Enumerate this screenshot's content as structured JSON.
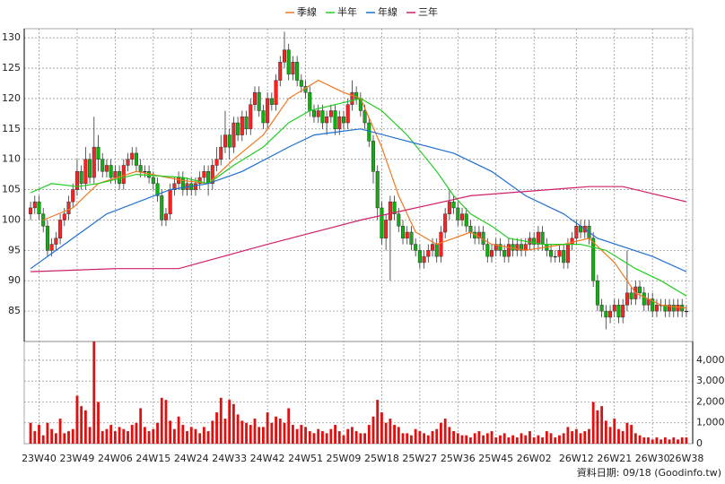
{
  "chart_data": [
    {
      "type": "candlestick",
      "categories": [
        null,
        null,
        "23W40",
        null,
        null,
        null,
        null,
        null,
        null,
        null,
        null,
        "23W49",
        null,
        null,
        null,
        null,
        null,
        null,
        null,
        null,
        "24W06",
        null,
        null,
        null,
        null,
        null,
        null,
        null,
        null,
        "24W15",
        null,
        null,
        null,
        null,
        null,
        null,
        null,
        null,
        "24W24",
        null,
        null,
        null,
        null,
        null,
        null,
        null,
        null,
        "24W33",
        null,
        null,
        null,
        null,
        null,
        null,
        null,
        null,
        "24W42",
        null,
        null,
        null,
        null,
        null,
        null,
        null,
        null,
        "24W51",
        null,
        null,
        null,
        null,
        null,
        null,
        null,
        null,
        "25W09",
        null,
        null,
        null,
        null,
        null,
        null,
        null,
        null,
        "25W18",
        null,
        null,
        null,
        null,
        null,
        null,
        null,
        null,
        "25W27",
        null,
        null,
        null,
        null,
        null,
        null,
        null,
        null,
        "25W36",
        null,
        null,
        null,
        null,
        null,
        null,
        null,
        null,
        "25W45",
        null,
        null,
        null,
        null,
        null,
        null,
        null,
        null,
        "26W02",
        null,
        null,
        null,
        null,
        null,
        null,
        null,
        null,
        null,
        "26W12",
        null,
        null,
        null,
        null,
        null,
        null,
        null,
        null,
        "26W21",
        null,
        null,
        null,
        null,
        null,
        null,
        null,
        null,
        "26W30",
        null,
        null,
        null,
        null,
        null,
        null,
        null,
        "26W38"
      ],
      "open": [
        101,
        102,
        103,
        101,
        99,
        95,
        96,
        97,
        100,
        101,
        103,
        105,
        108,
        106,
        110,
        107,
        112,
        110,
        108,
        109,
        107,
        108,
        106,
        109,
        110,
        111,
        109,
        108,
        108,
        107,
        106,
        104,
        100,
        101,
        105,
        106,
        107,
        105,
        106,
        105,
        106,
        107,
        108,
        106,
        109,
        110,
        112,
        114,
        112,
        116,
        114,
        117,
        115,
        119,
        121,
        118,
        116,
        120,
        119,
        123,
        126,
        128,
        124,
        126,
        123,
        122,
        121,
        118,
        117,
        118,
        116,
        117,
        118,
        115,
        117,
        116,
        119,
        121,
        120,
        118,
        116,
        113,
        108,
        102,
        97,
        100,
        103,
        101,
        99,
        97,
        98,
        96,
        95,
        93,
        94,
        95,
        96,
        94,
        98,
        101,
        103,
        102,
        100,
        101,
        99,
        98,
        97,
        98,
        96,
        94,
        95,
        96,
        95,
        94,
        96,
        95,
        96,
        95,
        96,
        97,
        96,
        98,
        96,
        95,
        94,
        94,
        95,
        93,
        96,
        97,
        99,
        98,
        99,
        97,
        90,
        86,
        85,
        84,
        85,
        86,
        84,
        86,
        88,
        87,
        89,
        88,
        86,
        87,
        85,
        86,
        86,
        85,
        86,
        85,
        86,
        85
      ],
      "high": [
        103,
        104,
        104,
        102,
        100,
        97,
        98,
        101,
        102,
        104,
        106,
        110,
        109,
        112,
        111,
        117,
        114,
        111,
        110,
        110,
        109,
        109,
        110,
        111,
        112,
        112,
        110,
        109,
        109,
        108,
        107,
        105,
        102,
        106,
        107,
        108,
        108,
        107,
        107,
        107,
        108,
        109,
        109,
        110,
        112,
        114,
        118,
        115,
        117,
        117,
        118,
        118,
        120,
        122,
        122,
        119,
        121,
        121,
        124,
        127,
        131,
        129,
        127,
        127,
        124,
        123,
        122,
        119,
        119,
        119,
        118,
        119,
        119,
        118,
        118,
        120,
        123,
        122,
        121,
        119,
        117,
        114,
        109,
        103,
        101,
        104,
        104,
        102,
        100,
        99,
        99,
        97,
        96,
        95,
        96,
        97,
        97,
        99,
        102,
        105,
        104,
        103,
        102,
        102,
        100,
        99,
        99,
        99,
        97,
        96,
        97,
        97,
        96,
        97,
        97,
        97,
        97,
        97,
        98,
        98,
        99,
        99,
        97,
        96,
        95,
        96,
        96,
        97,
        98,
        100,
        100,
        100,
        100,
        98,
        91,
        87,
        86,
        86,
        87,
        87,
        87,
        95,
        89,
        90,
        90,
        89,
        88,
        88,
        87,
        87,
        87,
        87,
        87,
        87,
        87,
        86
      ],
      "low": [
        100,
        101,
        100,
        98,
        94,
        94,
        95,
        96,
        99,
        100,
        102,
        104,
        105,
        105,
        106,
        106,
        108,
        107,
        107,
        106,
        106,
        105,
        105,
        108,
        109,
        108,
        107,
        107,
        106,
        105,
        103,
        99,
        99,
        100,
        104,
        105,
        104,
        104,
        104,
        104,
        105,
        106,
        104,
        105,
        108,
        109,
        111,
        110,
        111,
        113,
        113,
        114,
        114,
        118,
        117,
        115,
        115,
        118,
        118,
        122,
        125,
        123,
        123,
        122,
        121,
        120,
        117,
        116,
        116,
        115,
        114,
        116,
        114,
        114,
        115,
        115,
        118,
        119,
        117,
        115,
        112,
        106,
        100,
        96,
        95,
        90,
        100,
        98,
        96,
        96,
        95,
        94,
        92,
        92,
        93,
        94,
        93,
        93,
        97,
        100,
        101,
        99,
        99,
        98,
        97,
        96,
        96,
        95,
        93,
        93,
        94,
        94,
        93,
        93,
        94,
        94,
        94,
        94,
        95,
        95,
        95,
        95,
        94,
        93,
        93,
        93,
        92,
        92,
        95,
        96,
        97,
        97,
        96,
        89,
        85,
        84,
        82,
        83,
        84,
        83,
        83,
        85,
        86,
        86,
        87,
        85,
        85,
        84,
        84,
        85,
        84,
        84,
        84,
        84,
        84,
        84
      ],
      "close": [
        102,
        103,
        101,
        99,
        95,
        96,
        97,
        100,
        101,
        103,
        105,
        108,
        106,
        110,
        107,
        112,
        110,
        108,
        109,
        107,
        108,
        106,
        109,
        110,
        111,
        109,
        108,
        108,
        107,
        106,
        104,
        100,
        101,
        105,
        106,
        107,
        105,
        106,
        105,
        106,
        107,
        108,
        106,
        109,
        110,
        112,
        114,
        112,
        116,
        114,
        117,
        115,
        119,
        121,
        118,
        116,
        120,
        119,
        123,
        126,
        128,
        124,
        126,
        123,
        122,
        121,
        118,
        117,
        118,
        116,
        117,
        118,
        115,
        117,
        116,
        119,
        121,
        120,
        118,
        116,
        113,
        108,
        102,
        97,
        100,
        103,
        101,
        99,
        97,
        98,
        96,
        95,
        93,
        94,
        95,
        96,
        94,
        98,
        101,
        103,
        102,
        100,
        101,
        99,
        98,
        97,
        98,
        96,
        94,
        95,
        96,
        95,
        94,
        96,
        95,
        96,
        95,
        96,
        97,
        96,
        98,
        96,
        95,
        94,
        94,
        95,
        93,
        96,
        97,
        99,
        98,
        99,
        97,
        90,
        86,
        85,
        84,
        85,
        86,
        84,
        86,
        88,
        87,
        89,
        88,
        86,
        87,
        85,
        86,
        86,
        85,
        86,
        85,
        86,
        85,
        85
      ],
      "up_color": "#ff2020",
      "down_color": "#10b010",
      "series": [
        {
          "name": "季線",
          "color": "#f07820",
          "x": [
            3,
            10,
            16,
            25,
            36,
            42,
            48,
            55,
            61,
            68,
            74,
            78,
            83,
            87,
            91,
            96,
            100,
            104,
            109,
            117,
            126,
            132,
            138,
            143,
            149,
            155
          ],
          "values": [
            100,
            102,
            106,
            108,
            106.5,
            106,
            110,
            114,
            120,
            123,
            121,
            120,
            112,
            104,
            98,
            96,
            97,
            98,
            96,
            95,
            96,
            97,
            93,
            88,
            86,
            85.5
          ]
        },
        {
          "name": "半年",
          "color": "#22cc22",
          "x": [
            0,
            5,
            11,
            16,
            25,
            36,
            42,
            48,
            55,
            61,
            66,
            72,
            78,
            83,
            89,
            96,
            100,
            104,
            109,
            113,
            121,
            130,
            136,
            143,
            149,
            155
          ],
          "values": [
            104.5,
            106,
            105.5,
            106,
            107.5,
            107,
            106,
            109,
            112,
            116,
            118,
            119,
            120,
            118,
            114,
            108,
            104,
            101,
            99,
            97,
            96,
            96,
            95,
            92,
            90,
            87.5
          ]
        },
        {
          "name": "年線",
          "color": "#1f6fd0",
          "x": [
            0,
            8,
            18,
            33,
            42,
            50,
            61,
            67,
            78,
            89,
            100,
            109,
            117,
            126,
            134,
            147,
            155
          ],
          "values": [
            92,
            96,
            101,
            105,
            106,
            108,
            112,
            114,
            115,
            113,
            111,
            108,
            104,
            101,
            97,
            94,
            91.5
          ]
        },
        {
          "name": "三年",
          "color": "#d0206a",
          "x": [
            0,
            20,
            35,
            56,
            78,
            104,
            132,
            140,
            155
          ],
          "values": [
            91.5,
            92,
            92,
            96,
            100,
            104,
            105.5,
            105.5,
            103
          ]
        }
      ],
      "xlim": [
        -1.5,
        156.5
      ],
      "ylim": [
        80,
        131.5
      ],
      "yticks": [
        85,
        90,
        95,
        100,
        105,
        110,
        115,
        120,
        125,
        130
      ],
      "grid": true
    },
    {
      "type": "bar",
      "values": [
        1000,
        600,
        900,
        400,
        1000,
        700,
        500,
        1200,
        500,
        600,
        700,
        2300,
        1800,
        1600,
        800,
        4900,
        2000,
        600,
        700,
        900,
        600,
        800,
        700,
        600,
        900,
        1000,
        1700,
        800,
        600,
        700,
        1000,
        2200,
        2100,
        1100,
        700,
        1300,
        900,
        600,
        800,
        700,
        500,
        800,
        600,
        1100,
        1500,
        2200,
        1200,
        2100,
        1900,
        1400,
        1100,
        1000,
        900,
        1200,
        800,
        800,
        1500,
        1000,
        1300,
        1200,
        1000,
        1700,
        900,
        700,
        900,
        800,
        600,
        500,
        700,
        600,
        500,
        700,
        900,
        600,
        400,
        700,
        800,
        600,
        500,
        500,
        900,
        1300,
        2100,
        1500,
        1000,
        1200,
        900,
        800,
        500,
        500,
        400,
        700,
        600,
        500,
        400,
        600,
        700,
        1000,
        1200,
        800,
        600,
        500,
        400,
        400,
        300,
        500,
        600,
        400,
        500,
        600,
        300,
        400,
        500,
        300,
        400,
        300,
        500,
        400,
        600,
        300,
        400,
        300,
        600,
        500,
        300,
        400,
        500,
        800,
        600,
        700,
        500,
        600,
        700,
        2000,
        1600,
        1800,
        1100,
        800,
        1200,
        700,
        600,
        1000,
        900,
        500,
        400,
        300,
        300,
        200,
        300,
        200,
        300,
        200,
        300,
        200,
        300,
        300
      ],
      "color": "#e01010",
      "ylim": [
        0,
        4900
      ],
      "yticks": [
        0,
        {
          "value": 1000,
          "label": "1,000"
        },
        {
          "value": 2000,
          "label": "2,000"
        },
        {
          "value": 3000,
          "label": "3,000"
        },
        {
          "value": 4000,
          "label": "4,000"
        }
      ],
      "grid": true,
      "annotation": "資料日期: 09/18  (Goodinfo.tw)"
    }
  ]
}
